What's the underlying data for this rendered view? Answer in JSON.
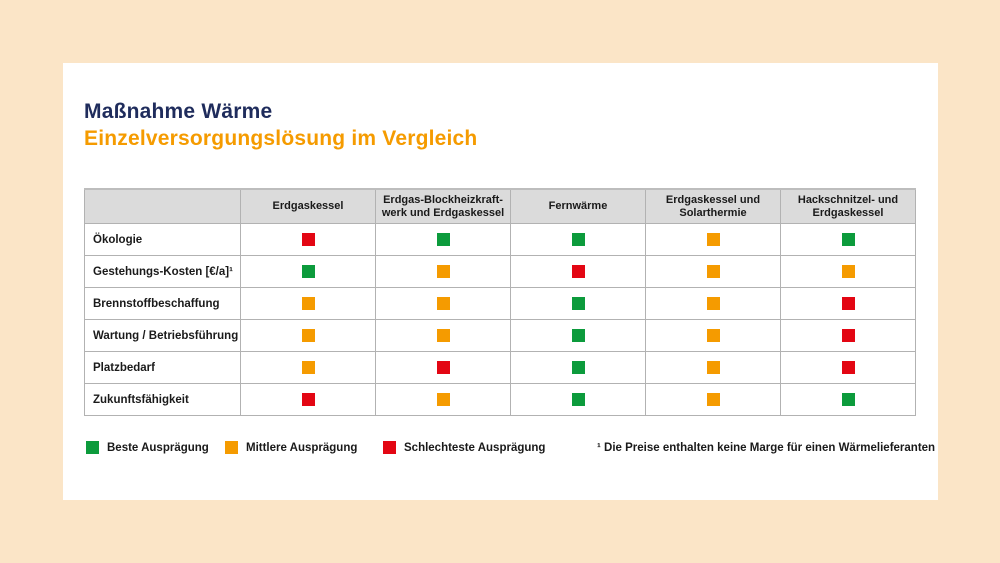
{
  "page": {
    "background_color": "#fbe5c7",
    "card_color": "#ffffff"
  },
  "header": {
    "title": "Maßnahme Wärme",
    "subtitle": "Einzelversorgungslösung im Vergleich"
  },
  "colors": {
    "title_navy": "#1f2c5c",
    "accent_orange": "#f59b00",
    "rating_green": "#0c9b3c",
    "rating_orange": "#f59b00",
    "rating_red": "#e30613",
    "header_gray": "#dbdbdb",
    "border_gray": "#b2b2b2"
  },
  "table": {
    "corner_label": "",
    "columns": [
      "Erdgaskessel",
      "Erdgas-Blockheizkraft-\nwerk und Erdgaskessel",
      "Fernwärme",
      "Erdgaskessel und\nSolarthermie",
      "Hackschnitzel- und\nErdgaskessel"
    ],
    "rows": [
      {
        "label": "Ökologie",
        "ratings": [
          "red",
          "green",
          "green",
          "orange",
          "green"
        ]
      },
      {
        "label": "Gestehungs-Kosten [€/a]¹",
        "ratings": [
          "green",
          "orange",
          "red",
          "orange",
          "orange"
        ]
      },
      {
        "label": "Brennstoffbeschaffung",
        "ratings": [
          "orange",
          "orange",
          "green",
          "orange",
          "red"
        ]
      },
      {
        "label": "Wartung / Betriebsführung",
        "ratings": [
          "orange",
          "orange",
          "green",
          "orange",
          "red"
        ]
      },
      {
        "label": "Platzbedarf",
        "ratings": [
          "orange",
          "red",
          "green",
          "orange",
          "red"
        ]
      },
      {
        "label": "Zukunftsfähigkeit",
        "ratings": [
          "red",
          "orange",
          "green",
          "orange",
          "green"
        ]
      }
    ]
  },
  "legend": {
    "items": [
      {
        "color": "green",
        "label": "Beste Ausprägung"
      },
      {
        "color": "orange",
        "label": "Mittlere Ausprägung"
      },
      {
        "color": "red",
        "label": "Schlechteste Ausprägung"
      }
    ]
  },
  "footnote": "¹ Die Preise enthalten keine Marge für einen Wärmelieferanten",
  "chart_data": {
    "type": "table",
    "title": "Maßnahme Wärme – Einzelversorgungslösung im Vergleich",
    "columns": [
      "Erdgaskessel",
      "Erdgas-Blockheizkraftwerk und Erdgaskessel",
      "Fernwärme",
      "Erdgaskessel und Solarthermie",
      "Hackschnitzel- und Erdgaskessel"
    ],
    "row_labels": [
      "Ökologie",
      "Gestehungs-Kosten [€/a]¹",
      "Brennstoffbeschaffung",
      "Wartung / Betriebsführung",
      "Platzbedarf",
      "Zukunftsfähigkeit"
    ],
    "values": [
      [
        "red",
        "green",
        "green",
        "orange",
        "green"
      ],
      [
        "green",
        "orange",
        "red",
        "orange",
        "orange"
      ],
      [
        "orange",
        "orange",
        "green",
        "orange",
        "red"
      ],
      [
        "orange",
        "orange",
        "green",
        "orange",
        "red"
      ],
      [
        "orange",
        "red",
        "green",
        "orange",
        "red"
      ],
      [
        "red",
        "orange",
        "green",
        "orange",
        "green"
      ]
    ],
    "rating_scale": {
      "green": "Beste Ausprägung",
      "orange": "Mittlere Ausprägung",
      "red": "Schlechteste Ausprägung"
    },
    "footnote": "¹ Die Preise enthalten keine Marge für einen Wärmelieferanten"
  }
}
